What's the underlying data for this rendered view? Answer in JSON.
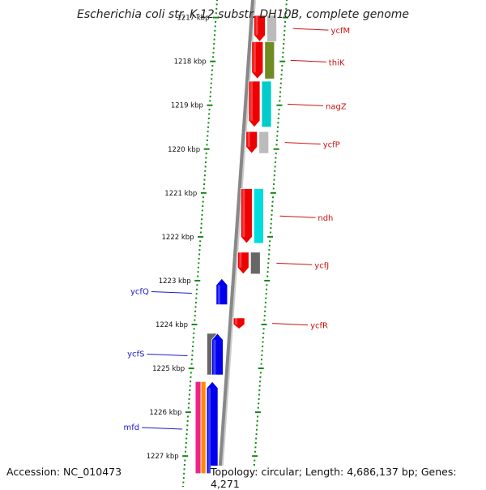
{
  "title": "Escherichia coli str. K-12 substr. DH10B, complete genome",
  "accession": "Accession: NC_010473",
  "topology": "Topology: circular; Length: 4,686,137 bp; Genes: 4,271",
  "colors": {
    "forward_gene": "#0000ee",
    "reverse_gene": "#ee0000",
    "backbone": "#888888",
    "tick": "#118811",
    "forward_label": "#1a1acc",
    "reverse_label": "#cc1111"
  },
  "kbp_labels": [
    {
      "kbp": 1217,
      "text": "1217 kbp"
    },
    {
      "kbp": 1218,
      "text": "1218 kbp"
    },
    {
      "kbp": 1219,
      "text": "1219 kbp"
    },
    {
      "kbp": 1220,
      "text": "1220 kbp"
    },
    {
      "kbp": 1221,
      "text": "1221 kbp"
    },
    {
      "kbp": 1222,
      "text": "1222 kbp"
    },
    {
      "kbp": 1223,
      "text": "1223 kbp"
    },
    {
      "kbp": 1224,
      "text": "1224 kbp"
    },
    {
      "kbp": 1225,
      "text": "1225 kbp"
    },
    {
      "kbp": 1226,
      "text": "1226 kbp"
    },
    {
      "kbp": 1227,
      "text": "1227 kbp"
    }
  ],
  "genes": [
    {
      "name": "ycfM",
      "strand": "reverse",
      "start_kbp": 1216.95,
      "end_kbp": 1217.55
    },
    {
      "name": "thiK",
      "strand": "reverse",
      "start_kbp": 1217.55,
      "end_kbp": 1218.4
    },
    {
      "name": "nagZ",
      "strand": "reverse",
      "start_kbp": 1218.45,
      "end_kbp": 1219.5
    },
    {
      "name": "ycfP",
      "strand": "reverse",
      "start_kbp": 1219.6,
      "end_kbp": 1220.1
    },
    {
      "name": "ndh",
      "strand": "reverse",
      "start_kbp": 1220.9,
      "end_kbp": 1222.15
    },
    {
      "name": "ycfJ",
      "strand": "reverse",
      "start_kbp": 1222.35,
      "end_kbp": 1222.85
    },
    {
      "name": "ycfQ",
      "strand": "forward",
      "start_kbp": 1222.95,
      "end_kbp": 1223.55
    },
    {
      "name": "ycfR",
      "strand": "reverse",
      "start_kbp": 1223.85,
      "end_kbp": 1224.1
    },
    {
      "name": "ycfS",
      "strand": "forward",
      "start_kbp": 1224.2,
      "end_kbp": 1225.15
    },
    {
      "name": "mfd",
      "strand": "forward",
      "start_kbp": 1225.3,
      "end_kbp": 1227.4
    }
  ],
  "tracks": [
    {
      "color": "#bbbbbb",
      "start_kbp": 1216.95,
      "end_kbp": 1217.55
    },
    {
      "color": "#6e8c22",
      "start_kbp": 1217.55,
      "end_kbp": 1218.4
    },
    {
      "color": "#00cccc",
      "start_kbp": 1218.45,
      "end_kbp": 1219.5
    },
    {
      "color": "#bbbbbb",
      "start_kbp": 1219.6,
      "end_kbp": 1220.1
    },
    {
      "color": "#00dddd",
      "start_kbp": 1220.9,
      "end_kbp": 1222.15
    },
    {
      "color": "#666666",
      "start_kbp": 1222.35,
      "end_kbp": 1222.85
    },
    {
      "color": "#666666",
      "start_kbp": 1224.2,
      "end_kbp": 1225.15
    },
    {
      "color": "#ee2288",
      "start_kbp": 1225.3,
      "end_kbp": 1227.4
    },
    {
      "color": "#ff8800",
      "start_kbp": 1225.3,
      "end_kbp": 1227.4
    }
  ]
}
